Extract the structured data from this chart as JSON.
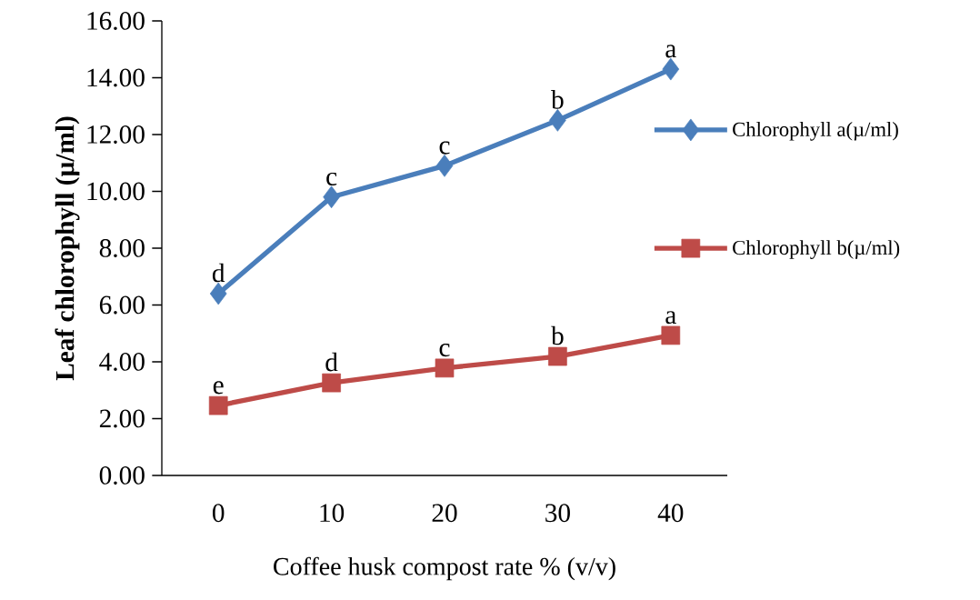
{
  "chart_data": {
    "type": "line",
    "xlabel": "Coffee husk compost rate % (v/v)",
    "ylabel": "Leaf chlorophyll (µ/ml)",
    "categories": [
      "0",
      "10",
      "20",
      "30",
      "40"
    ],
    "series": [
      {
        "name": "Chlorophyll a(µ/ml)",
        "color": "#4a7ebb",
        "marker": "diamond",
        "values": [
          6.4,
          9.8,
          10.9,
          12.5,
          14.3
        ]
      },
      {
        "name": "Chlorophyll b(µ/ml)",
        "color": "#be4b48",
        "marker": "square",
        "values": [
          2.46,
          3.26,
          3.78,
          4.19,
          4.93
        ]
      }
    ],
    "ylim": [
      0,
      16
    ],
    "yticks": [
      {
        "value": 0,
        "label": "0.00"
      },
      {
        "value": 2,
        "label": "2.00"
      },
      {
        "value": 4,
        "label": "4.00"
      },
      {
        "value": 6,
        "label": "6.00"
      },
      {
        "value": 8,
        "label": "8.00"
      },
      {
        "value": 10,
        "label": "10.00"
      },
      {
        "value": 12,
        "label": "12.00"
      },
      {
        "value": 14,
        "label": "14.00"
      },
      {
        "value": 16,
        "label": "16.00"
      }
    ],
    "grid": false,
    "legend": "right",
    "line_style": "solid",
    "annotations": [
      {
        "text": "d",
        "x": "0",
        "y": 6.4
      },
      {
        "text": "c",
        "x": "10",
        "y": 9.8
      },
      {
        "text": "c",
        "x": "20",
        "y": 10.9
      },
      {
        "text": "b",
        "x": "30",
        "y": 12.5
      },
      {
        "text": "a",
        "x": "40",
        "y": 14.3
      },
      {
        "text": "e",
        "x": "0",
        "y": 2.46
      },
      {
        "text": "d",
        "x": "10",
        "y": 3.26
      },
      {
        "text": "c",
        "x": "20",
        "y": 3.78
      },
      {
        "text": "b",
        "x": "30",
        "y": 4.19
      },
      {
        "text": "a",
        "x": "40",
        "y": 4.93
      }
    ]
  }
}
